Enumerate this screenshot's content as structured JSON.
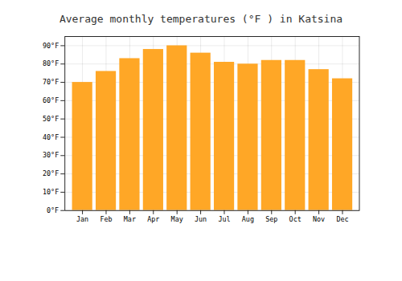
{
  "chart_data": {
    "type": "bar",
    "title": "Average monthly temperatures (°F ) in Katsina",
    "categories": [
      "Jan",
      "Feb",
      "Mar",
      "Apr",
      "May",
      "Jun",
      "Jul",
      "Aug",
      "Sep",
      "Oct",
      "Nov",
      "Dec"
    ],
    "values": [
      70,
      76,
      83,
      88,
      90,
      86,
      81,
      80,
      82,
      82,
      77,
      72
    ],
    "color": "#FFA726",
    "ylim": [
      0,
      95
    ],
    "yticks": [
      {
        "value": 0,
        "label": "0°F"
      },
      {
        "value": 10,
        "label": "10°F"
      },
      {
        "value": 20,
        "label": "20°F"
      },
      {
        "value": 30,
        "label": "30°F"
      },
      {
        "value": 40,
        "label": "40°F"
      },
      {
        "value": 50,
        "label": "50°F"
      },
      {
        "value": 60,
        "label": "60°F"
      },
      {
        "value": 70,
        "label": "70°F"
      },
      {
        "value": 80,
        "label": "80°F"
      },
      {
        "value": 90,
        "label": "90°F"
      }
    ],
    "grid": true
  }
}
